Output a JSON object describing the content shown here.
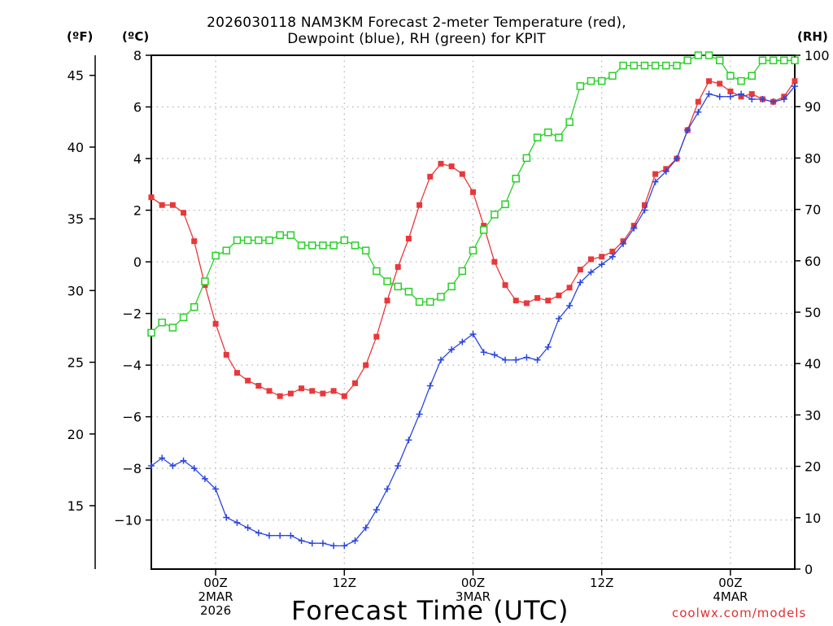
{
  "chart_data": {
    "type": "line",
    "title": "2026030118 NAM3KM Forecast 2-meter Temperature (red),",
    "subtitle": "Dewpoint (blue), RH (green) for KPIT",
    "xlabel": "Forecast Time (UTC)",
    "units": {
      "fahrenheit": "(ºF)",
      "celsius": "(ºC)",
      "rh": "(RH)"
    },
    "credit": "coolwx.com/models",
    "x_hours_since_start": {
      "start": 0,
      "end": 60,
      "step": 1
    },
    "x_ticks": [
      {
        "hour": 6,
        "labels": [
          "00Z",
          "2MAR",
          "2026"
        ]
      },
      {
        "hour": 18,
        "labels": [
          "12Z"
        ]
      },
      {
        "hour": 30,
        "labels": [
          "00Z",
          "3MAR"
        ]
      },
      {
        "hour": 42,
        "labels": [
          "12Z"
        ]
      },
      {
        "hour": 54,
        "labels": [
          "00Z",
          "4MAR"
        ]
      }
    ],
    "y_left_celsius": {
      "ylim": [
        -11.9,
        8
      ],
      "ticks": [
        -10,
        -8,
        -6,
        -4,
        -2,
        0,
        2,
        4,
        6,
        8
      ]
    },
    "y_far_left_fahrenheit": {
      "ticks": [
        15,
        20,
        25,
        30,
        35,
        40,
        45
      ]
    },
    "y_right_rh": {
      "ylim": [
        0,
        100
      ],
      "ticks": [
        0,
        10,
        20,
        30,
        40,
        50,
        60,
        70,
        80,
        90,
        100
      ]
    },
    "grid": true,
    "series": [
      {
        "name": "Temperature",
        "color": "#e8383a",
        "axis": "celsius",
        "marker": "filled-square",
        "values": [
          2.5,
          2.2,
          2.2,
          1.9,
          0.8,
          -0.9,
          -2.4,
          -3.6,
          -4.3,
          -4.6,
          -4.8,
          -5.0,
          -5.2,
          -5.1,
          -4.9,
          -5.0,
          -5.1,
          -5.0,
          -5.2,
          -4.7,
          -4.0,
          -2.9,
          -1.5,
          -0.2,
          0.9,
          2.2,
          3.3,
          3.8,
          3.7,
          3.4,
          2.7,
          1.4,
          0.0,
          -0.9,
          -1.5,
          -1.6,
          -1.4,
          -1.5,
          -1.3,
          -1.0,
          -0.3,
          0.1,
          0.2,
          0.4,
          0.8,
          1.4,
          2.2,
          3.4,
          3.6,
          4.0,
          5.1,
          6.2,
          7.0,
          6.9,
          6.6,
          6.4,
          6.5,
          6.3,
          6.2,
          6.4,
          7.0
        ]
      },
      {
        "name": "Dewpoint",
        "color": "#2a46e0",
        "axis": "celsius",
        "marker": "plus",
        "values": [
          -7.9,
          -7.6,
          -7.9,
          -7.7,
          -8.0,
          -8.4,
          -8.8,
          -9.9,
          -10.1,
          -10.3,
          -10.5,
          -10.6,
          -10.6,
          -10.6,
          -10.8,
          -10.9,
          -10.9,
          -11.0,
          -11.0,
          -10.8,
          -10.3,
          -9.6,
          -8.8,
          -7.9,
          -6.9,
          -5.9,
          -4.8,
          -3.8,
          -3.4,
          -3.1,
          -2.8,
          -3.5,
          -3.6,
          -3.8,
          -3.8,
          -3.7,
          -3.8,
          -3.3,
          -2.2,
          -1.7,
          -0.8,
          -0.4,
          -0.1,
          0.2,
          0.7,
          1.3,
          2.0,
          3.1,
          3.5,
          4.0,
          5.1,
          5.8,
          6.5,
          6.4,
          6.4,
          6.5,
          6.3,
          6.3,
          6.2,
          6.3,
          6.8
        ]
      },
      {
        "name": "RH",
        "color": "#28d028",
        "axis": "rh",
        "marker": "open-square",
        "values": [
          46,
          48,
          47,
          49,
          51,
          56,
          61,
          62,
          64,
          64,
          64,
          64,
          65,
          65,
          63,
          63,
          63,
          63,
          64,
          63,
          62,
          58,
          56,
          55,
          54,
          52,
          52,
          53,
          55,
          58,
          62,
          66,
          69,
          71,
          76,
          80,
          84,
          85,
          84,
          87,
          94,
          95,
          95,
          96,
          98,
          98,
          98,
          98,
          98,
          98,
          99,
          100,
          100,
          99,
          96,
          95,
          96,
          99,
          99,
          99,
          99
        ]
      }
    ]
  }
}
